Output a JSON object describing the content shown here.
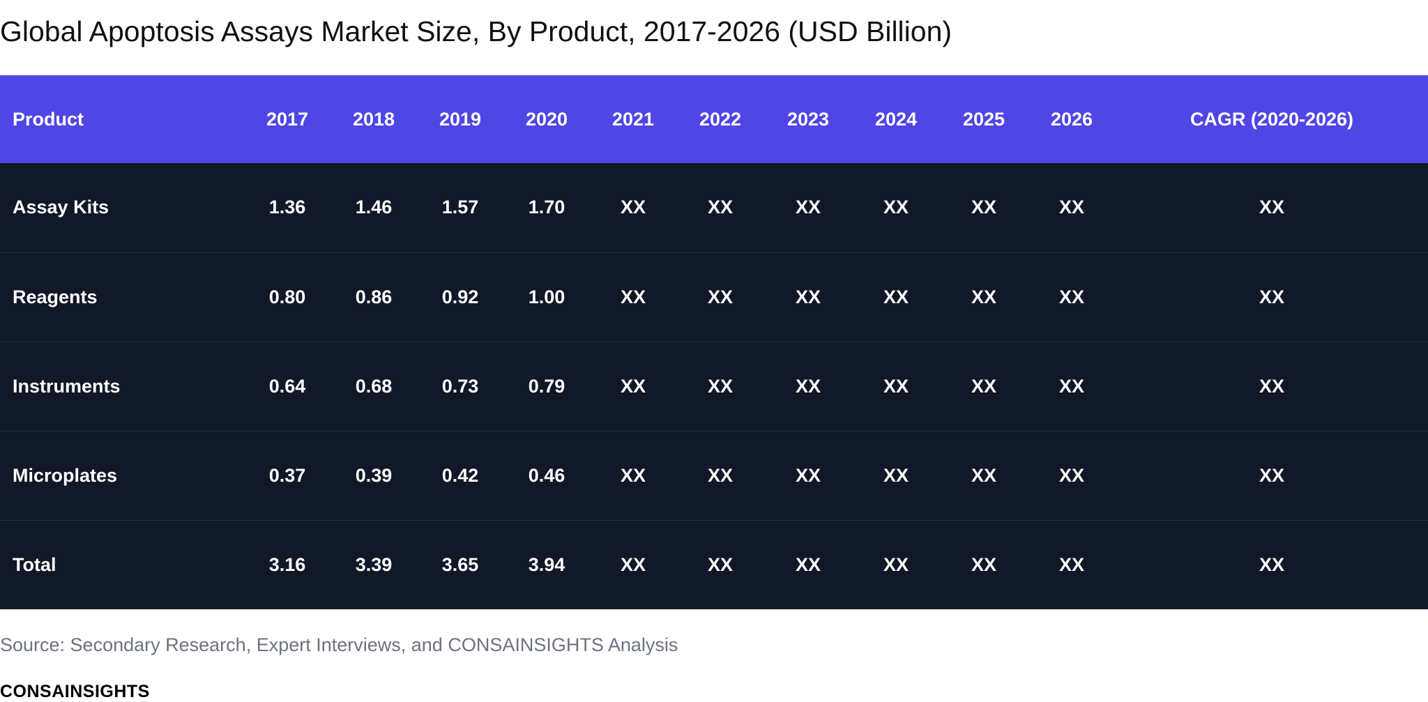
{
  "chart_data": {
    "type": "table",
    "title": "Global Apoptosis Assays Market Size, By Product, 2017-2026 (USD Billion)",
    "columns": [
      "Product",
      "2017",
      "2018",
      "2019",
      "2020",
      "2021",
      "2022",
      "2023",
      "2024",
      "2025",
      "2026",
      "CAGR (2020-2026)"
    ],
    "rows": [
      [
        "Assay Kits",
        "1.36",
        "1.46",
        "1.57",
        "1.70",
        "XX",
        "XX",
        "XX",
        "XX",
        "XX",
        "XX",
        "XX"
      ],
      [
        "Reagents",
        "0.80",
        "0.86",
        "0.92",
        "1.00",
        "XX",
        "XX",
        "XX",
        "XX",
        "XX",
        "XX",
        "XX"
      ],
      [
        "Instruments",
        "0.64",
        "0.68",
        "0.73",
        "0.79",
        "XX",
        "XX",
        "XX",
        "XX",
        "XX",
        "XX",
        "XX"
      ],
      [
        "Microplates",
        "0.37",
        "0.39",
        "0.42",
        "0.46",
        "XX",
        "XX",
        "XX",
        "XX",
        "XX",
        "XX",
        "XX"
      ],
      [
        "Total",
        "3.16",
        "3.39",
        "3.65",
        "3.94",
        "XX",
        "XX",
        "XX",
        "XX",
        "XX",
        "XX",
        "XX"
      ]
    ],
    "source": "Source: Secondary Research, Expert Interviews, and CONSAINSIGHTS Analysis",
    "logo": "CONSAINSIGHTS",
    "colors": {
      "header_background": "#4f46e5",
      "body_background": "#111827",
      "text": "#ffffff",
      "source_text": "#6b7280"
    }
  }
}
